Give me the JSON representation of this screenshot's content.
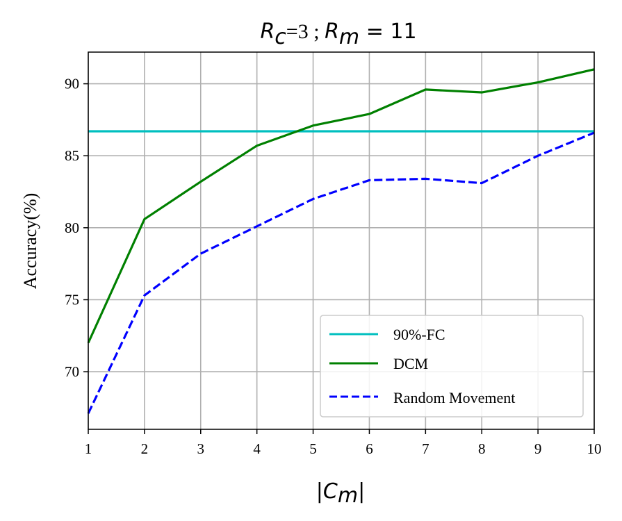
{
  "chart_data": {
    "type": "line",
    "title": {
      "rc_symbol": "R",
      "rc_sub": "c",
      "rc_value": "=3 ; ",
      "rm_symbol": "R",
      "rm_sub": "m",
      "rm_value": " = 11"
    },
    "xlabel": {
      "left_bar": "|",
      "symbol": "C",
      "sub": "m",
      "right_bar": "|"
    },
    "ylabel": "Accuracy(%)",
    "x": [
      1,
      2,
      3,
      4,
      5,
      6,
      7,
      8,
      9,
      10
    ],
    "xlim": [
      1,
      10
    ],
    "ylim": [
      66,
      92.2
    ],
    "xticks": [
      "1",
      "2",
      "3",
      "4",
      "5",
      "6",
      "7",
      "8",
      "9",
      "10"
    ],
    "yticks": [
      70,
      75,
      80,
      85,
      90
    ],
    "ytick_labels": [
      "70",
      "75",
      "80",
      "85",
      "90"
    ],
    "grid": true,
    "legend_position": "lower-right",
    "series": [
      {
        "name": "90%-FC",
        "color": "#00bfbf",
        "style": "solid",
        "values": [
          86.7,
          86.7,
          86.7,
          86.7,
          86.7,
          86.7,
          86.7,
          86.7,
          86.7,
          86.7
        ]
      },
      {
        "name": "DCM",
        "color": "#008000",
        "style": "solid",
        "values": [
          72.0,
          80.6,
          83.2,
          85.7,
          87.1,
          87.9,
          89.6,
          89.4,
          90.1,
          91.0
        ]
      },
      {
        "name": "Random Movement",
        "color": "#0000ff",
        "style": "dashed",
        "values": [
          67.1,
          75.3,
          78.2,
          80.1,
          82.0,
          83.3,
          83.4,
          83.1,
          85.0,
          86.6
        ]
      }
    ]
  }
}
